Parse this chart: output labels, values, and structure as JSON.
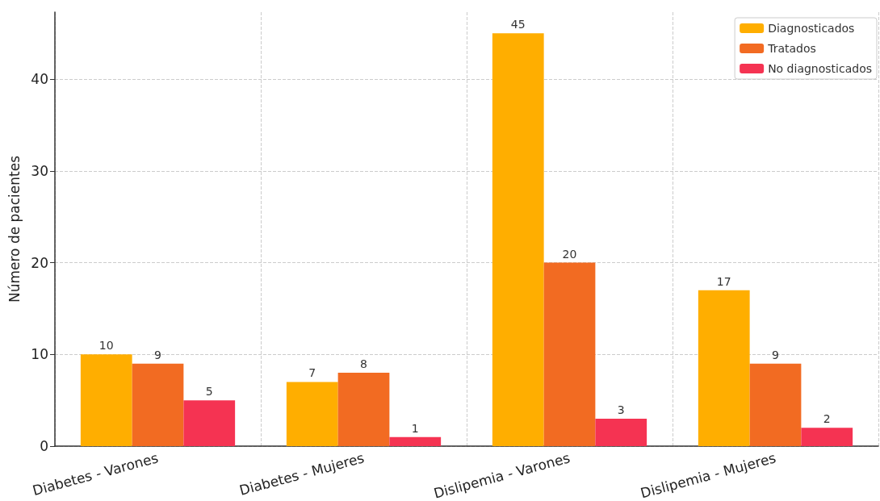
{
  "chart_data": {
    "type": "bar",
    "ylabel": "Número de pacientes",
    "categories": [
      "Diabetes - Varones",
      "Diabetes - Mujeres",
      "Dislipemia - Varones",
      "Dislipemia - Mujeres"
    ],
    "series": [
      {
        "name": "Diagnosticados",
        "color": "#ffae00",
        "values": [
          10,
          7,
          45,
          17
        ]
      },
      {
        "name": "Tratados",
        "color": "#f26b22",
        "values": [
          9,
          8,
          20,
          9
        ]
      },
      {
        "name": "No diagnosticados",
        "color": "#f53352",
        "values": [
          5,
          1,
          3,
          2
        ]
      }
    ],
    "ylim": [
      0,
      47.3
    ],
    "yticks": [
      0,
      10,
      20,
      30,
      40
    ],
    "grid": true,
    "legend": "top right",
    "data_labels": true
  }
}
